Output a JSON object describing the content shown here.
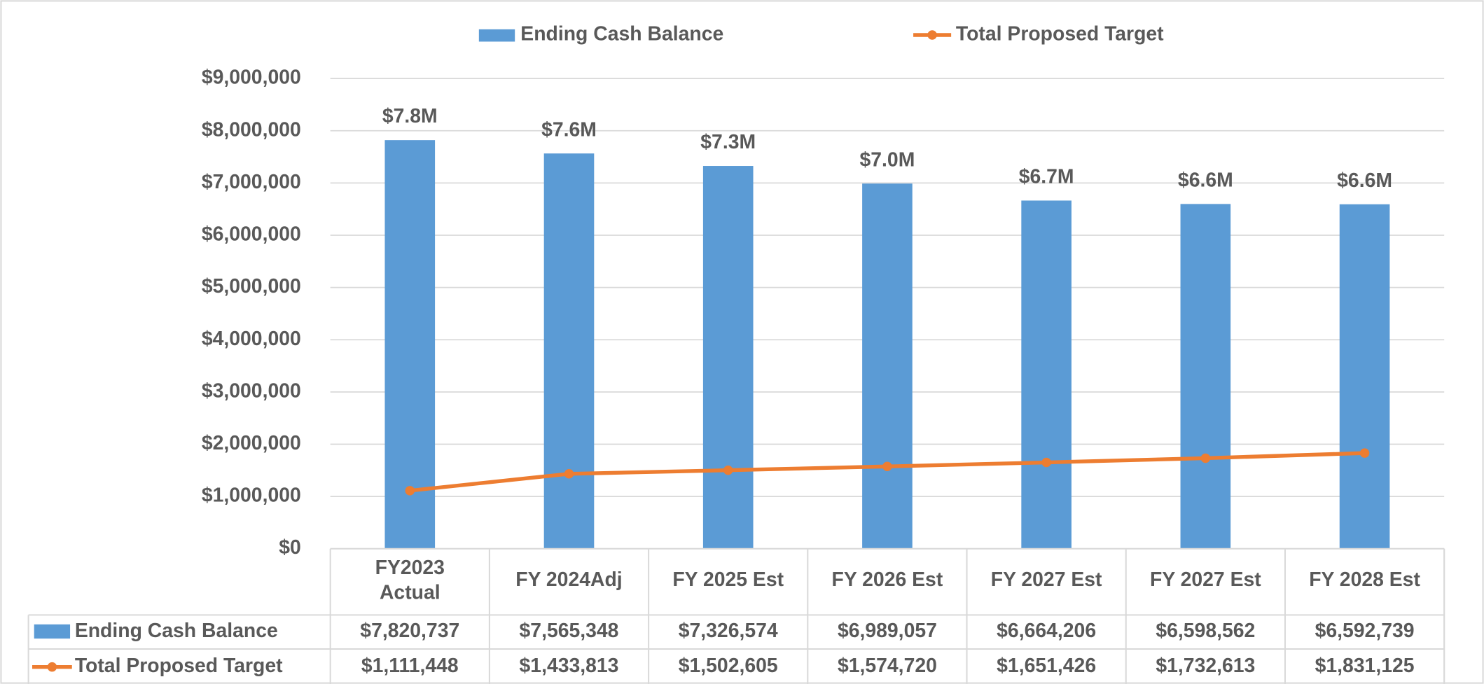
{
  "chart_data": {
    "type": "bar_line_table",
    "categories": [
      "FY2023\nActual",
      "FY 2024Adj",
      "FY 2025 Est",
      "FY 2026 Est",
      "FY 2027 Est",
      "FY 2027 Est",
      "FY 2028 Est"
    ],
    "series": [
      {
        "name": "Ending Cash Balance",
        "type": "bar",
        "color": "#5b9bd5",
        "values": [
          7820737,
          7565348,
          7326574,
          6989057,
          6664206,
          6598562,
          6592739
        ],
        "value_labels": [
          "$7.8M",
          "$7.6M",
          "$7.3M",
          "$7.0M",
          "$6.7M",
          "$6.6M",
          "$6.6M"
        ],
        "table_labels": [
          "$7,820,737",
          "$7,565,348",
          "$7,326,574",
          "$6,989,057",
          "$6,664,206",
          "$6,598,562",
          "$6,592,739"
        ]
      },
      {
        "name": "Total Proposed Target",
        "type": "line",
        "color": "#ed7d31",
        "values": [
          1111448,
          1433813,
          1502605,
          1574720,
          1651426,
          1732613,
          1831125
        ],
        "table_labels": [
          "$1,111,448",
          "$1,433,813",
          "$1,502,605",
          "$1,574,720",
          "$1,651,426",
          "$1,732,613",
          "$1,831,125"
        ]
      }
    ],
    "ylim": [
      0,
      9000000
    ],
    "yticks": [
      {
        "value": 0,
        "label": "$0"
      },
      {
        "value": 1000000,
        "label": "$1,000,000"
      },
      {
        "value": 2000000,
        "label": "$2,000,000"
      },
      {
        "value": 3000000,
        "label": "$3,000,000"
      },
      {
        "value": 4000000,
        "label": "$4,000,000"
      },
      {
        "value": 5000000,
        "label": "$5,000,000"
      },
      {
        "value": 6000000,
        "label": "$6,000,000"
      },
      {
        "value": 7000000,
        "label": "$7,000,000"
      },
      {
        "value": 8000000,
        "label": "$8,000,000"
      },
      {
        "value": 9000000,
        "label": "$9,000,000"
      }
    ],
    "grid": true,
    "legend": "top"
  }
}
